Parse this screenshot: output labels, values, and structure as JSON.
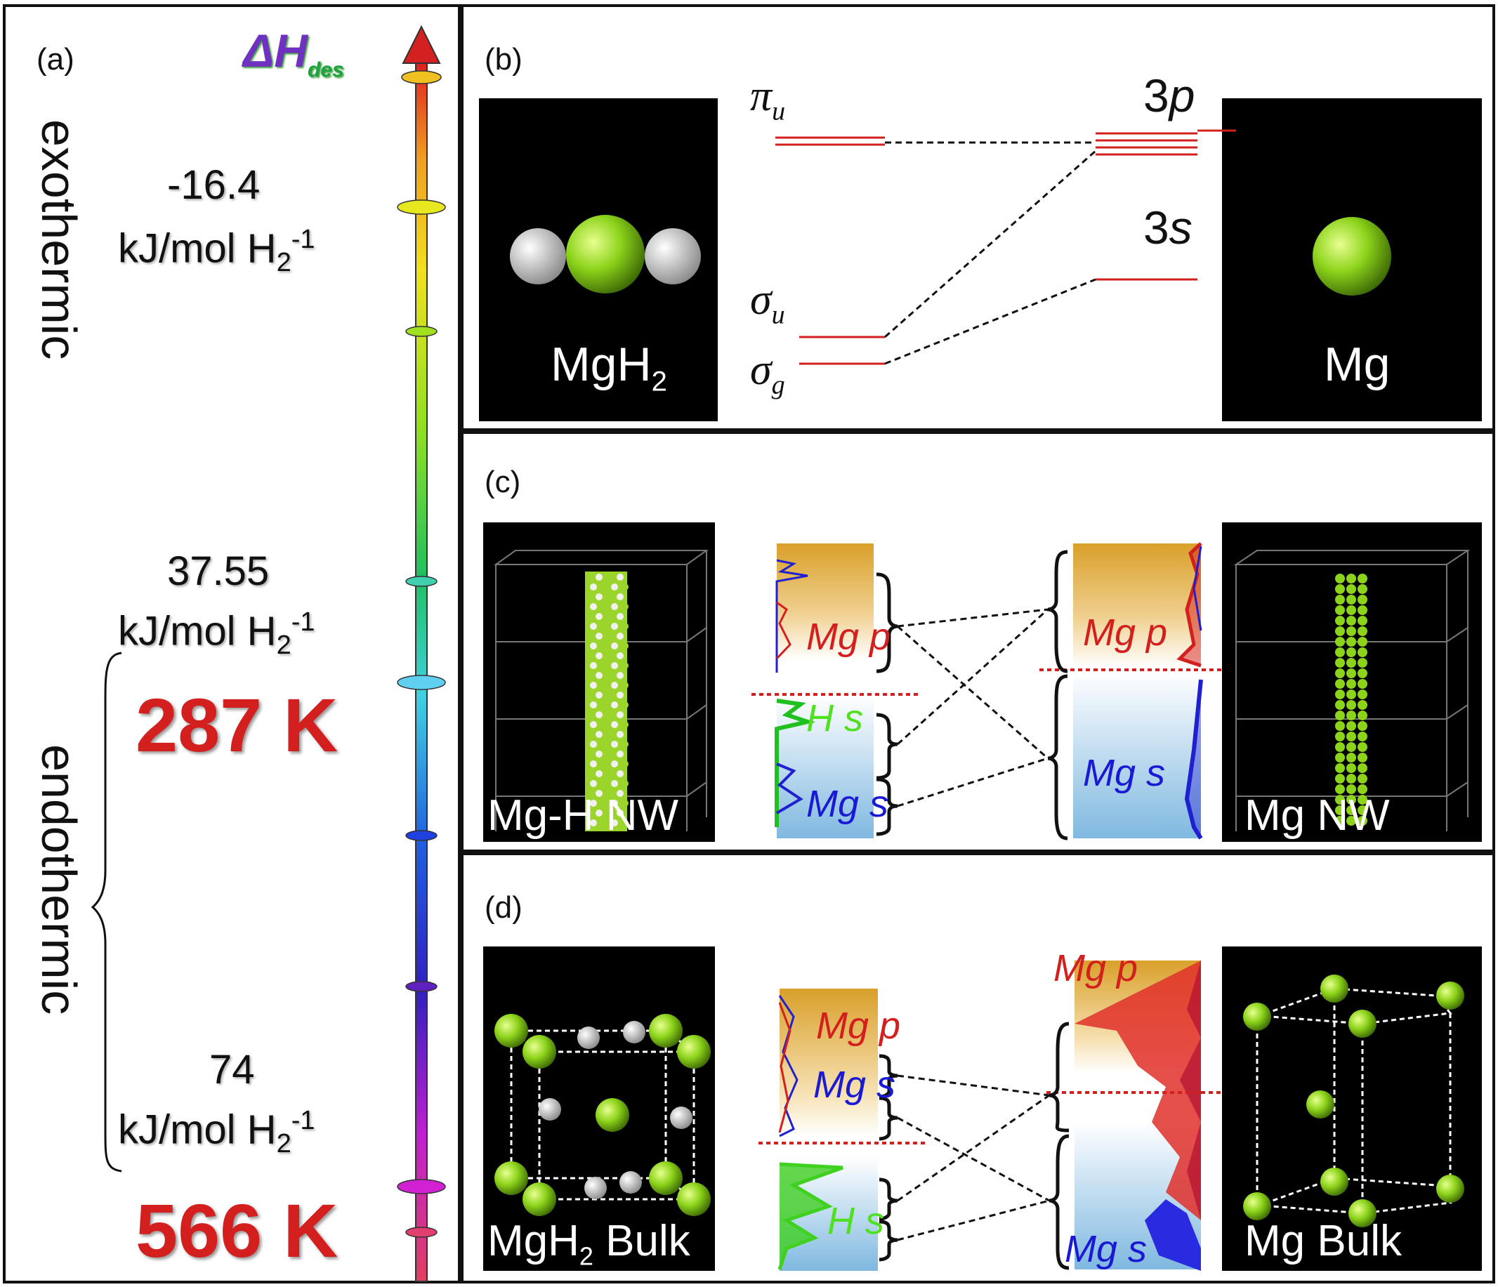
{
  "panel_a": {
    "tag": "(a)",
    "arrow_label_main": "ΔH",
    "arrow_label_sub": "des",
    "exothermic": "exothermic",
    "endothermic": "endothermic",
    "v1": "-16.4",
    "v2": "37.55",
    "v3": "74",
    "unit_main": "kJ/mol H",
    "unit_sub": "2",
    "unit_sup": "-1",
    "t1": "287 K",
    "t2": "566 K"
  },
  "panel_b": {
    "tag": "(b)",
    "left_label_main": "MgH",
    "left_label_sub": "2",
    "right_label": "Mg",
    "pi_main": "π",
    "pi_sub": "u",
    "su_main": "σ",
    "su_sub": "u",
    "sg_main": "σ",
    "sg_sub": "g",
    "p3_num": "3",
    "p3_letter": "p",
    "s3_num": "3",
    "s3_letter": "s"
  },
  "panel_c": {
    "tag": "(c)",
    "left_label": "Mg-H NW",
    "right_label": "Mg NW",
    "mgp_left": "Mg p",
    "hs_left": "H s",
    "mgs_left": "Mg s",
    "mgp_right": "Mg p",
    "mgs_right": "Mg s"
  },
  "panel_d": {
    "tag": "(d)",
    "left_label_main": "MgH",
    "left_label_sub": "2",
    "left_label_tail": " Bulk",
    "right_label": "Mg Bulk",
    "mgp_left": "Mg p",
    "mgs_left": "Mg s",
    "hs_left": "H s",
    "mgp_right": "Mg p",
    "mgs_right": "Mg s"
  },
  "colors": {
    "red": "#d41f1f",
    "mg_green": "#8cd31a",
    "h_white": "#e8e8e8",
    "blue": "#1a1ad4"
  }
}
